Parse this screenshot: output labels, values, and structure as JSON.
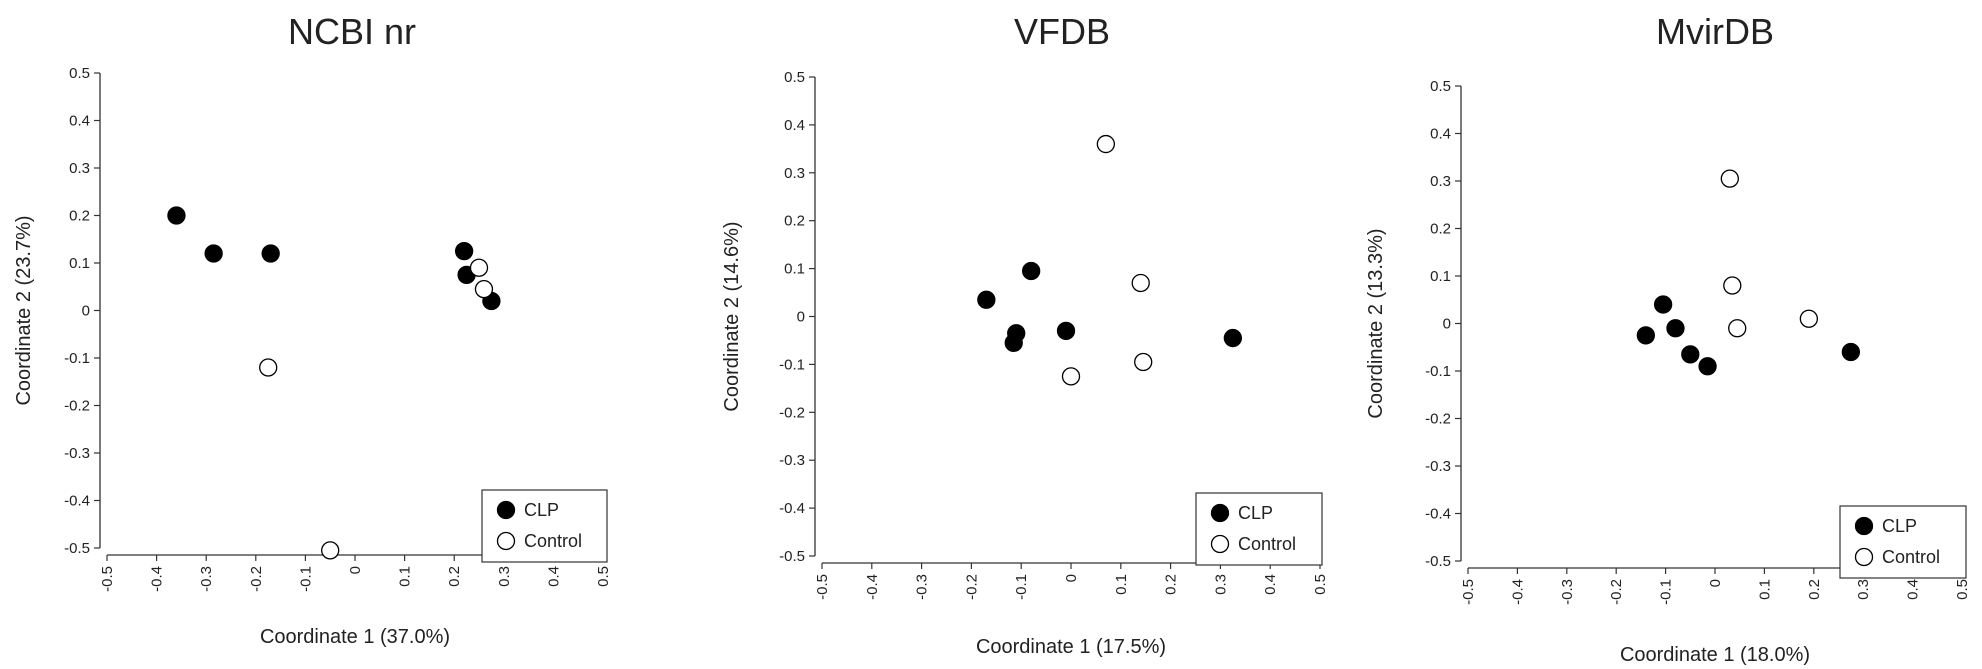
{
  "chart_data": [
    {
      "type": "scatter",
      "title": "NCBI nr",
      "xlabel": "Coordinate 1  (37.0%)",
      "ylabel": "Coordinate 2 (23.7%)",
      "xlim": [
        -0.5,
        0.5
      ],
      "ylim": [
        -0.5,
        0.5
      ],
      "xticks": [
        "-0.5",
        "-0.4",
        "-0.3",
        "-0.2",
        "-0.1",
        "0",
        "0.1",
        "0.2",
        "0.3",
        "0.4",
        "0.5"
      ],
      "yticks": [
        "0.5",
        "0.4",
        "0.3",
        "0.2",
        "0.1",
        "0",
        "-0.1",
        "-0.2",
        "-0.3",
        "-0.4",
        "-0.5"
      ],
      "grid": false,
      "legend": {
        "position": "bottom-right",
        "entries": [
          "CLP",
          "Control"
        ]
      },
      "series": [
        {
          "name": "CLP",
          "marker": "filled-circle",
          "points": [
            [
              -0.36,
              0.2
            ],
            [
              -0.285,
              0.12
            ],
            [
              -0.17,
              0.12
            ],
            [
              0.22,
              0.125
            ],
            [
              0.225,
              0.075
            ],
            [
              0.275,
              0.02
            ]
          ]
        },
        {
          "name": "Control",
          "marker": "open-circle",
          "points": [
            [
              -0.175,
              -0.12
            ],
            [
              0.25,
              0.09
            ],
            [
              0.26,
              0.045
            ],
            [
              -0.05,
              -0.505
            ]
          ]
        }
      ]
    },
    {
      "type": "scatter",
      "title": "VFDB",
      "xlabel": "Coordinate 1  (17.5%)",
      "ylabel": "Coordinate 2 (14.6%)",
      "xlim": [
        -0.5,
        0.5
      ],
      "ylim": [
        -0.5,
        0.5
      ],
      "xticks": [
        "-0.5",
        "-0.4",
        "-0.3",
        "-0.2",
        "-0.1",
        "0",
        "0.1",
        "0.2",
        "0.3",
        "0.4",
        "0.5"
      ],
      "yticks": [
        "0.5",
        "0.4",
        "0.3",
        "0.2",
        "0.1",
        "0",
        "-0.1",
        "-0.2",
        "-0.3",
        "-0.4",
        "-0.5"
      ],
      "grid": false,
      "legend": {
        "position": "bottom-right",
        "entries": [
          "CLP",
          "Control"
        ]
      },
      "series": [
        {
          "name": "CLP",
          "marker": "filled-circle",
          "points": [
            [
              -0.17,
              0.035
            ],
            [
              -0.11,
              -0.035
            ],
            [
              -0.115,
              -0.055
            ],
            [
              -0.08,
              0.095
            ],
            [
              -0.01,
              -0.03
            ],
            [
              0.325,
              -0.045
            ]
          ]
        },
        {
          "name": "Control",
          "marker": "open-circle",
          "points": [
            [
              0.07,
              0.36
            ],
            [
              0.14,
              0.07
            ],
            [
              0.145,
              -0.095
            ],
            [
              0.0,
              -0.125
            ]
          ]
        }
      ]
    },
    {
      "type": "scatter",
      "title": "MvirDB",
      "xlabel": "Coordinate 1  (18.0%)",
      "ylabel": "Coordinate 2  (13.3%)",
      "xlim": [
        -0.5,
        0.5
      ],
      "ylim": [
        -0.5,
        0.5
      ],
      "xticks": [
        "-0.5",
        "-0.4",
        "-0.3",
        "-0.2",
        "-0.1",
        "0",
        "0.1",
        "0.2",
        "0.3",
        "0.4",
        "0.5"
      ],
      "yticks": [
        "0.5",
        "0.4",
        "0.3",
        "0.2",
        "0.1",
        "0",
        "-0.1",
        "-0.2",
        "-0.3",
        "-0.4",
        "-0.5"
      ],
      "grid": false,
      "legend": {
        "position": "bottom-right",
        "entries": [
          "CLP",
          "Control"
        ]
      },
      "series": [
        {
          "name": "CLP",
          "marker": "filled-circle",
          "points": [
            [
              -0.14,
              -0.025
            ],
            [
              -0.105,
              0.04
            ],
            [
              -0.08,
              -0.01
            ],
            [
              -0.05,
              -0.065
            ],
            [
              -0.015,
              -0.09
            ],
            [
              0.275,
              -0.06
            ]
          ]
        },
        {
          "name": "Control",
          "marker": "open-circle",
          "points": [
            [
              0.03,
              0.305
            ],
            [
              0.035,
              0.08
            ],
            [
              0.045,
              -0.01
            ],
            [
              0.19,
              0.01
            ]
          ]
        }
      ]
    }
  ]
}
